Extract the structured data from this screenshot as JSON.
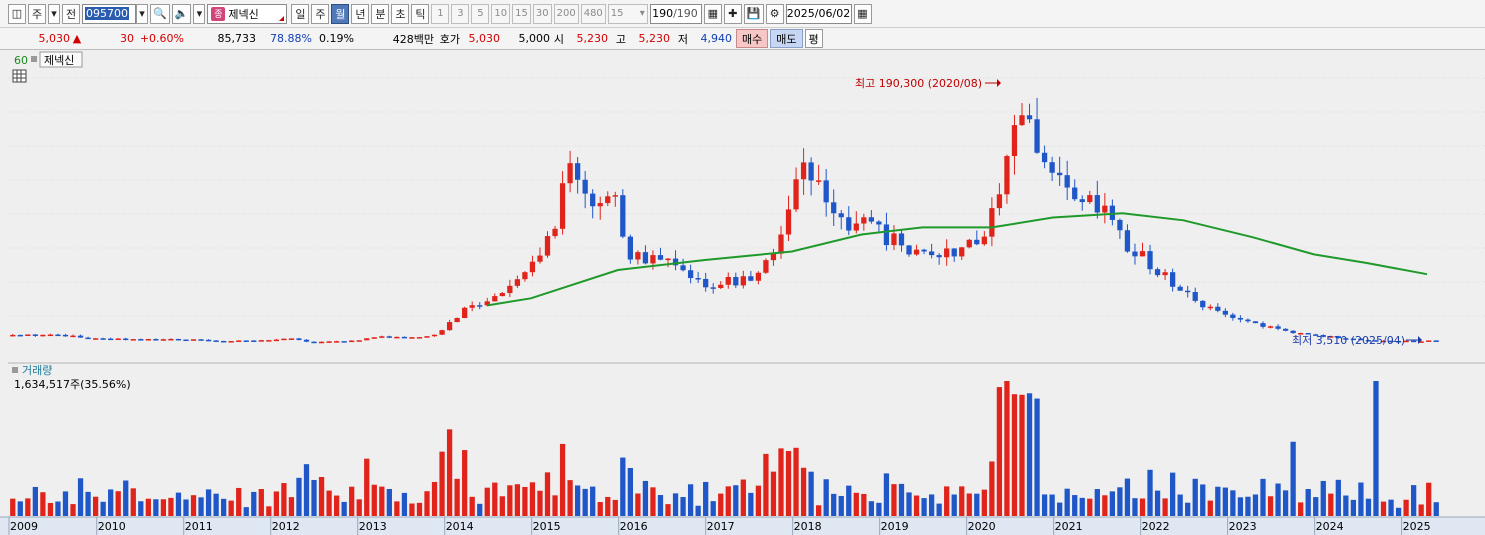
{
  "toolbar": {
    "period_type": "주",
    "prev_label": "전",
    "stock_code": "095700",
    "stock_type_badge": "종",
    "stock_name": "제넥신",
    "period_buttons": [
      "일",
      "주",
      "월",
      "년",
      "분",
      "초",
      "틱"
    ],
    "active_period": "월",
    "interval_buttons": [
      "1",
      "3",
      "5",
      "10",
      "15",
      "30",
      "200",
      "480"
    ],
    "interval_select": "15",
    "bar_count": "190",
    "bar_total": "/190",
    "date": "2025/06/02"
  },
  "quote": {
    "price": "5,030",
    "change_arrow": "▲",
    "change": "30",
    "change_pct": "+0.60%",
    "volume": "85,733",
    "volume_ratio": "78.88%",
    "turnover": "0.19%",
    "amount": "428백만",
    "bid_label": "호가",
    "bid_price": "5,030",
    "bid_price2": "5,000",
    "open_label": "시",
    "open": "5,230",
    "high_label": "고",
    "high": "5,230",
    "low_label": "저",
    "low": "4,940",
    "buy_label": "매수",
    "sell_label": "매도",
    "avg_label": "평"
  },
  "price_panel": {
    "ma_period": "60",
    "stock_name": "제넥신",
    "high_annotation": "최고 190,300 (2020/08)",
    "low_annotation": "최저 3,510 (2025/04)"
  },
  "volume_panel": {
    "title": "거래량",
    "value_text": "1,634,517주(35.56%)"
  },
  "chart_data": {
    "type": "candlestick",
    "interval": "monthly",
    "x_axis_labels": [
      "2009",
      "2010",
      "2011",
      "2012",
      "2013",
      "2014",
      "2015",
      "2016",
      "2017",
      "2018",
      "2019",
      "2020",
      "2021",
      "2022",
      "2023",
      "2024",
      "2025"
    ],
    "moving_average": "60",
    "price_points": [
      {
        "year": 2009.6,
        "close": 9000
      },
      {
        "year": 2010.0,
        "close": 6500
      },
      {
        "year": 2010.5,
        "close": 6000
      },
      {
        "year": 2011.0,
        "close": 6200
      },
      {
        "year": 2011.5,
        "close": 5000
      },
      {
        "year": 2012.0,
        "close": 5200
      },
      {
        "year": 2012.2,
        "close": 7000
      },
      {
        "year": 2012.5,
        "close": 4000
      },
      {
        "year": 2013.0,
        "close": 5500
      },
      {
        "year": 2013.3,
        "close": 8500
      },
      {
        "year": 2013.6,
        "close": 7000
      },
      {
        "year": 2013.9,
        "close": 9000
      },
      {
        "year": 2014.3,
        "close": 30000
      },
      {
        "year": 2014.6,
        "close": 35000
      },
      {
        "year": 2014.9,
        "close": 55000
      },
      {
        "year": 2015.2,
        "close": 75000
      },
      {
        "year": 2015.45,
        "close": 125000
      },
      {
        "year": 2015.6,
        "close": 105000
      },
      {
        "year": 2015.8,
        "close": 95000
      },
      {
        "year": 2016.0,
        "close": 110000
      },
      {
        "year": 2016.1,
        "close": 65000
      },
      {
        "year": 2016.5,
        "close": 62000
      },
      {
        "year": 2016.9,
        "close": 45000
      },
      {
        "year": 2017.3,
        "close": 47000
      },
      {
        "year": 2017.6,
        "close": 52000
      },
      {
        "year": 2017.9,
        "close": 80000
      },
      {
        "year": 2018.1,
        "close": 130000
      },
      {
        "year": 2018.3,
        "close": 110000
      },
      {
        "year": 2018.6,
        "close": 90000
      },
      {
        "year": 2018.9,
        "close": 85000
      },
      {
        "year": 2019.2,
        "close": 75000
      },
      {
        "year": 2019.6,
        "close": 62000
      },
      {
        "year": 2019.9,
        "close": 70000
      },
      {
        "year": 2020.2,
        "close": 75000
      },
      {
        "year": 2020.45,
        "close": 130000
      },
      {
        "year": 2020.6,
        "close": 183000
      },
      {
        "year": 2020.8,
        "close": 140000
      },
      {
        "year": 2021.0,
        "close": 125000
      },
      {
        "year": 2021.3,
        "close": 110000
      },
      {
        "year": 2021.6,
        "close": 95000
      },
      {
        "year": 2021.9,
        "close": 70000
      },
      {
        "year": 2022.2,
        "close": 55000
      },
      {
        "year": 2022.5,
        "close": 40000
      },
      {
        "year": 2022.8,
        "close": 28000
      },
      {
        "year": 2023.2,
        "close": 18000
      },
      {
        "year": 2023.6,
        "close": 13000
      },
      {
        "year": 2023.9,
        "close": 10000
      },
      {
        "year": 2024.3,
        "close": 7000
      },
      {
        "year": 2024.7,
        "close": 5500
      },
      {
        "year": 2025.0,
        "close": 4800
      },
      {
        "year": 2025.3,
        "close": 5030
      }
    ],
    "ma_points": [
      {
        "year": 2014.5,
        "value": 30000
      },
      {
        "year": 2015.0,
        "value": 35000
      },
      {
        "year": 2016.0,
        "value": 55000
      },
      {
        "year": 2017.0,
        "value": 62000
      },
      {
        "year": 2018.0,
        "value": 68000
      },
      {
        "year": 2018.8,
        "value": 80000
      },
      {
        "year": 2019.5,
        "value": 85000
      },
      {
        "year": 2020.3,
        "value": 85000
      },
      {
        "year": 2021.0,
        "value": 92000
      },
      {
        "year": 2021.8,
        "value": 95000
      },
      {
        "year": 2022.5,
        "value": 90000
      },
      {
        "year": 2023.3,
        "value": 78000
      },
      {
        "year": 2024.0,
        "value": 66000
      },
      {
        "year": 2024.6,
        "value": 60000
      },
      {
        "year": 2025.3,
        "value": 52000
      }
    ]
  }
}
